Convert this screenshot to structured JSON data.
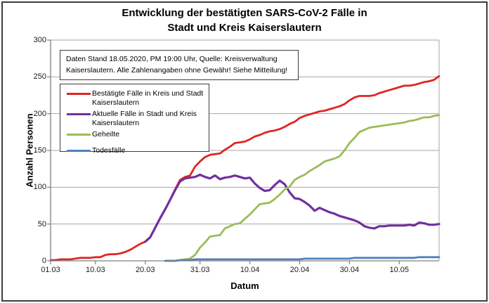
{
  "title": {
    "line1": "Entwicklung der bestätigten SARS-CoV-2 Fälle in",
    "line2": "Stadt und Kreis Kaiserslautern"
  },
  "info_box": {
    "line1": "Daten Stand 18.05.2020, PM 19:00 Uhr, Quelle: Kreisverwaltung",
    "line2": "Kaiserslautern. Alle Zahlenangaben ohne Gewähr! Siehe Mitteilung!"
  },
  "chart_data": {
    "type": "line",
    "title": "Entwicklung der bestätigten SARS-CoV-2 Fälle in Stadt und Kreis Kaiserslautern",
    "xlabel": "Datum",
    "ylabel": "Anzahl Personen",
    "ylim": [
      0,
      300
    ],
    "y_ticks": [
      0,
      50,
      100,
      150,
      200,
      250,
      300
    ],
    "x_total_days": 78,
    "x_tick_days": [
      0,
      9,
      19,
      30,
      40,
      50,
      60,
      70
    ],
    "x_tick_labels": [
      "01.03",
      "10.03",
      "20.03",
      "31.03",
      "10.04",
      "20.04",
      "30.04",
      "10.05"
    ],
    "grid": true,
    "legend_position": "upper-left",
    "axis_color": "#7f7f7f",
    "grid_color": "#a6a6a6",
    "series": [
      {
        "name": "Bestätigte Fälle in Kreis und Stadt Kaiserslautern",
        "color": "#e02424",
        "width": 2.8,
        "start_day": 0,
        "values": [
          1,
          1,
          2,
          2,
          2,
          3,
          4,
          4,
          4,
          5,
          5,
          8,
          9,
          9,
          10,
          12,
          15,
          19,
          23,
          26,
          32,
          45,
          58,
          70,
          83,
          97,
          110,
          114,
          116,
          128,
          135,
          141,
          144,
          145,
          146,
          151,
          155,
          160,
          161,
          162,
          165,
          169,
          171,
          174,
          176,
          177,
          179,
          182,
          186,
          189,
          194,
          197,
          199,
          201,
          203,
          204,
          206,
          208,
          210,
          213,
          218,
          222,
          224,
          224,
          224,
          225,
          228,
          230,
          232,
          234,
          236,
          238,
          238,
          239,
          241,
          243,
          244,
          246,
          251
        ]
      },
      {
        "name": "Aktuelle Fälle in Stadt und Kreis Kaiserslautern",
        "color": "#7030a0",
        "width": 3.2,
        "start_day": 19,
        "values": [
          26,
          32,
          45,
          58,
          70,
          83,
          96,
          108,
          112,
          113,
          114,
          117,
          114,
          112,
          116,
          111,
          113,
          114,
          116,
          114,
          112,
          113,
          105,
          99,
          95,
          96,
          103,
          109,
          104,
          93,
          85,
          84,
          80,
          75,
          68,
          72,
          69,
          66,
          64,
          61,
          59,
          57,
          55,
          52,
          47,
          45,
          44,
          47,
          47,
          48,
          48,
          48,
          48,
          49,
          48,
          52,
          51,
          49,
          49,
          50
        ]
      },
      {
        "name": "Geheilte",
        "color": "#9bbb59",
        "width": 2.8,
        "start_day": 23,
        "values": [
          0,
          0,
          0,
          1,
          2,
          3,
          8,
          18,
          25,
          33,
          34,
          35,
          44,
          47,
          50,
          51,
          57,
          63,
          70,
          77,
          78,
          79,
          84,
          90,
          97,
          101,
          110,
          114,
          117,
          122,
          126,
          130,
          135,
          137,
          139,
          142,
          150,
          160,
          167,
          175,
          178,
          181,
          182,
          183,
          184,
          185,
          186,
          187,
          188,
          190,
          191,
          193,
          195,
          195,
          197,
          198
        ]
      },
      {
        "name": "Todesfälle",
        "color": "#4f81bd",
        "width": 2.8,
        "start_day": 23,
        "values": [
          0,
          0,
          0,
          1,
          1,
          1,
          2,
          2,
          2,
          2,
          2,
          2,
          2,
          2,
          2,
          2,
          2,
          2,
          2,
          2,
          2,
          2,
          2,
          2,
          2,
          2,
          2,
          2,
          3,
          3,
          3,
          3,
          3,
          3,
          3,
          3,
          3,
          3,
          4,
          4,
          4,
          4,
          4,
          4,
          4,
          4,
          4,
          4,
          4,
          4,
          4,
          5,
          5,
          5,
          5,
          5
        ]
      }
    ]
  }
}
